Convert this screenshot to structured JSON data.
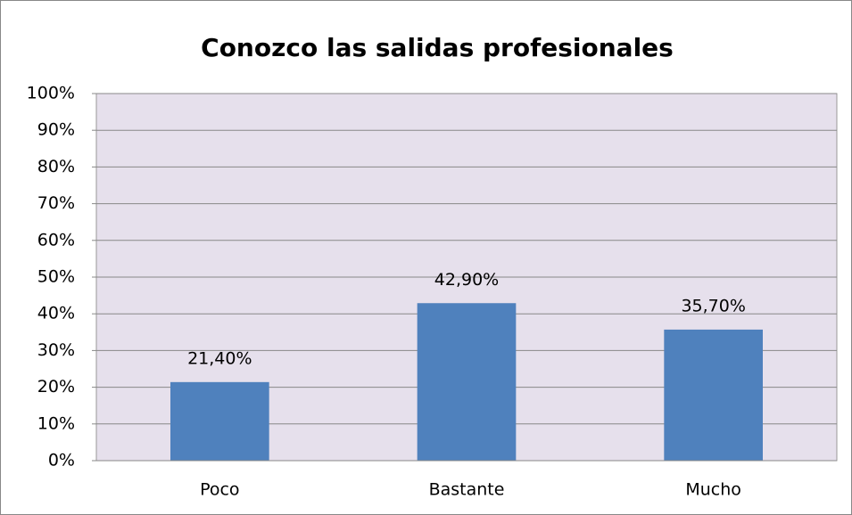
{
  "chart_data": {
    "type": "bar",
    "title": "Conozco las salidas profesionales",
    "categories": [
      "Poco",
      "Bastante",
      "Mucho"
    ],
    "values": [
      21.4,
      42.9,
      35.7
    ],
    "value_labels": [
      "21,40%",
      "42,90%",
      "35,70%"
    ],
    "color": "#4f81bd",
    "ylim": [
      0,
      100
    ],
    "yticks": [
      {
        "value": 0,
        "label": "0%"
      },
      {
        "value": 10,
        "label": "10%"
      },
      {
        "value": 20,
        "label": "20%"
      },
      {
        "value": 30,
        "label": "30%"
      },
      {
        "value": 40,
        "label": "40%"
      },
      {
        "value": 50,
        "label": "50%"
      },
      {
        "value": 60,
        "label": "60%"
      },
      {
        "value": 70,
        "label": "70%"
      },
      {
        "value": 80,
        "label": "80%"
      },
      {
        "value": 90,
        "label": "90%"
      },
      {
        "value": 100,
        "label": "100%"
      }
    ],
    "grid": true
  }
}
